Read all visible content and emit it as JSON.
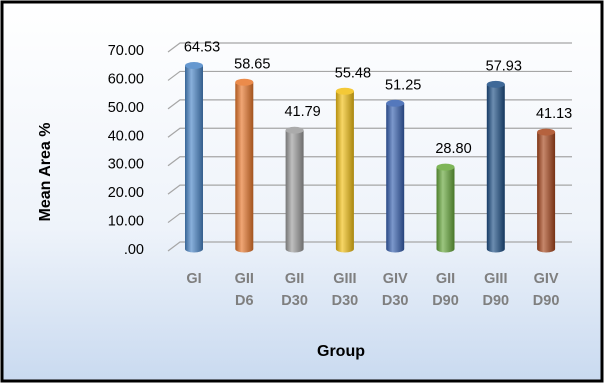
{
  "chart_data": {
    "type": "bar",
    "title": "",
    "xlabel": "Group",
    "ylabel": "Mean Area %",
    "ylim": [
      0,
      70
    ],
    "y_ticks": [
      ".00",
      "10.00",
      "20.00",
      "30.00",
      "40.00",
      "50.00",
      "60.00",
      "70.00"
    ],
    "grid": true,
    "style": "3d-cylinder",
    "categories": [
      [
        "GI"
      ],
      [
        "GII",
        "D6"
      ],
      [
        "GII",
        "D30"
      ],
      [
        "GIII",
        "D30"
      ],
      [
        "GIV",
        "D30"
      ],
      [
        "GII",
        "D90"
      ],
      [
        "GIII",
        "D90"
      ],
      [
        "GIV",
        "D90"
      ]
    ],
    "values": [
      64.53,
      58.65,
      41.79,
      55.48,
      51.25,
      28.8,
      57.93,
      41.13
    ],
    "value_labels": [
      "64.53",
      "58.65",
      "41.79",
      "55.48",
      "51.25",
      "28.80",
      "57.93",
      "41.13"
    ],
    "colors": [
      "#4a86c8",
      "#e8762b",
      "#9c9c9c",
      "#f2c014",
      "#3660b0",
      "#67a83b",
      "#1d4f86",
      "#a8461c"
    ]
  },
  "colors": {
    "background_top": "#ffffff",
    "background_bottom": "#c9daf0",
    "frame_border": "#000000",
    "axis_text": "#000000",
    "category_text": "#7f7f7f",
    "gridline": "#a6a6a6"
  }
}
